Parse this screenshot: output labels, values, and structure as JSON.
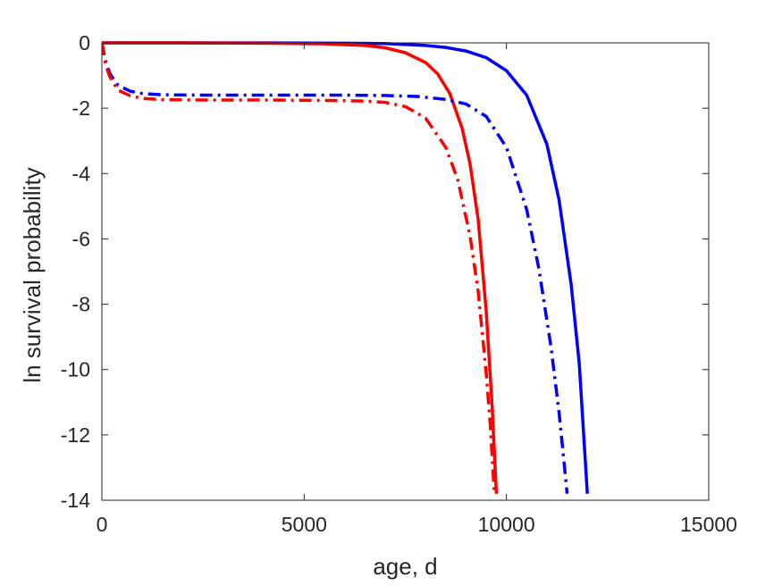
{
  "chart_data": {
    "type": "line",
    "title": "",
    "xlabel": "age, d",
    "ylabel": "ln survival probability",
    "xlim": [
      0,
      15000
    ],
    "ylim": [
      -14,
      0
    ],
    "xticks": [
      0,
      5000,
      10000,
      15000
    ],
    "yticks": [
      0,
      -2,
      -4,
      -6,
      -8,
      -10,
      -12,
      -14
    ],
    "xtick_labels": [
      "0",
      "5000",
      "10000",
      "15000"
    ],
    "ytick_labels": [
      "0",
      "-2",
      "-4",
      "-6",
      "-8",
      "-10",
      "-12",
      "-14"
    ],
    "grid": false,
    "legend": "none",
    "series": [
      {
        "color": "#0000ff",
        "style": "solid",
        "x": [
          0,
          2000,
          4000,
          6000,
          7000,
          8000,
          8500,
          9000,
          9500,
          10000,
          10500,
          11000,
          11300,
          11600,
          11800,
          12000
        ],
        "y": [
          0,
          0,
          0,
          -0.01,
          -0.02,
          -0.08,
          -0.14,
          -0.25,
          -0.45,
          -0.85,
          -1.6,
          -3.1,
          -4.8,
          -7.4,
          -9.8,
          -13.8
        ]
      },
      {
        "color": "#ff0000",
        "style": "solid",
        "x": [
          0,
          2000,
          4000,
          5500,
          6500,
          7000,
          7500,
          8000,
          8300,
          8600,
          8900,
          9100,
          9300,
          9500,
          9650,
          9750
        ],
        "y": [
          0,
          0,
          -0.01,
          -0.03,
          -0.08,
          -0.15,
          -0.3,
          -0.6,
          -0.95,
          -1.55,
          -2.6,
          -3.7,
          -5.4,
          -8.2,
          -11.2,
          -13.8
        ]
      },
      {
        "color": "#0000ff",
        "style": "dashdot",
        "x": [
          0,
          100,
          200,
          400,
          700,
          1000,
          1500,
          2500,
          4000,
          6000,
          7000,
          7800,
          8500,
          9000,
          9500,
          10000,
          10500,
          10800,
          11100,
          11300,
          11500
        ],
        "y": [
          0,
          -0.6,
          -0.95,
          -1.3,
          -1.48,
          -1.55,
          -1.59,
          -1.6,
          -1.6,
          -1.6,
          -1.61,
          -1.64,
          -1.73,
          -1.87,
          -2.25,
          -3.2,
          -5.1,
          -6.9,
          -9.3,
          -11.3,
          -13.8
        ]
      },
      {
        "color": "#ff0000",
        "style": "dashdot",
        "x": [
          0,
          100,
          200,
          400,
          700,
          1000,
          1500,
          2500,
          4000,
          5500,
          6500,
          7000,
          7500,
          8000,
          8500,
          8800,
          9100,
          9300,
          9500,
          9600,
          9700
        ],
        "y": [
          0,
          -0.7,
          -1.05,
          -1.45,
          -1.62,
          -1.7,
          -1.74,
          -1.75,
          -1.75,
          -1.76,
          -1.78,
          -1.82,
          -1.95,
          -2.3,
          -3.2,
          -4.2,
          -5.9,
          -7.6,
          -10.1,
          -11.7,
          -13.8
        ]
      }
    ]
  }
}
